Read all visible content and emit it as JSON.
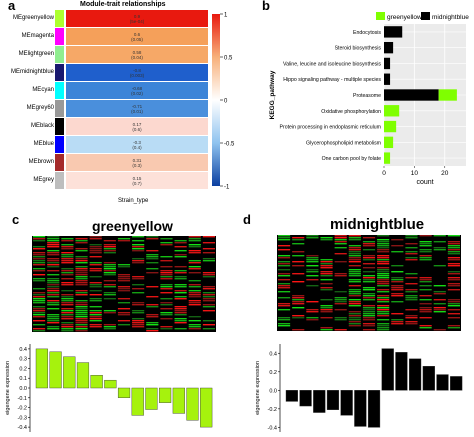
{
  "panel_a": {
    "letter": "a",
    "title": "Module-trait relationships",
    "xlabel": "Strain_type",
    "modules": [
      {
        "name": "MEgreenyellow",
        "swatch": "#adff2f",
        "color": "#e8190f",
        "r": "0.9",
        "p": "(5e-04)"
      },
      {
        "name": "MEmagenta",
        "swatch": "#ff00ff",
        "color": "#f5a05a",
        "r": "0.6",
        "p": "(0.05)"
      },
      {
        "name": "MElightgreen",
        "swatch": "#90ee90",
        "color": "#f6a867",
        "r": "0.58",
        "p": "(0.04)"
      },
      {
        "name": "MEmidnightblue",
        "swatch": "#191970",
        "color": "#1f5fcc",
        "r": "-0.8",
        "p": "(0.003)"
      },
      {
        "name": "MEcyan",
        "swatch": "#00ffff",
        "color": "#3c84d8",
        "r": "-0.68",
        "p": "(0.02)"
      },
      {
        "name": "MEgrey60",
        "swatch": "#999999",
        "color": "#4a8fdc",
        "r": "-0.71",
        "p": "(0.01)"
      },
      {
        "name": "MEblack",
        "swatch": "#000000",
        "color": "#fcd8cf",
        "r": "0.17",
        "p": "(0.6)"
      },
      {
        "name": "MEblue",
        "swatch": "#0000ff",
        "color": "#b9dcf5",
        "r": "-0.3",
        "p": "(0.4)"
      },
      {
        "name": "MEbrown",
        "swatch": "#a52a2a",
        "color": "#f9c9b0",
        "r": "0.31",
        "p": "(0.3)"
      },
      {
        "name": "MEgrey",
        "swatch": "#bebebe",
        "color": "#fde1d9",
        "r": "0.15",
        "p": "(0.7)"
      }
    ],
    "scale_ticks": [
      "1",
      "0.5",
      "0",
      "-0.5",
      "-1"
    ]
  },
  "panel_b": {
    "letter": "b",
    "legend": [
      "greenyellow",
      "midnightblue"
    ],
    "colors": {
      "greenyellow": "#7fff00",
      "midnightblue": "#000000"
    },
    "ylabel": "KEGG_pathway",
    "xlabel": "count",
    "chart_data": {
      "type": "bar",
      "orientation": "horizontal",
      "stacked": true,
      "categories": [
        "Endocytosis",
        "Steroid biosynthesis",
        "Valine, leucine and isoleucine biosynthesis",
        "Hippo signaling pathway - multiple species",
        "Proteasome",
        "Oxidative phosphorylation",
        "Protein processing in endoplasmic reticulum",
        "Glycerophospholipid metabolism",
        "One carbon pool by folate"
      ],
      "series": [
        {
          "name": "midnightblue",
          "values": [
            6,
            3,
            2,
            2,
            18,
            0,
            0,
            0,
            0
          ]
        },
        {
          "name": "greenyellow",
          "values": [
            0,
            0,
            0,
            0,
            6,
            5,
            4,
            3,
            2
          ]
        }
      ],
      "xticks": [
        "0",
        "10",
        "20"
      ],
      "xlim": [
        0,
        27
      ]
    }
  },
  "panel_c": {
    "letter": "c",
    "title": "greenyellow",
    "ylabel": "eigengene expression",
    "chart_data": {
      "type": "bar",
      "values": [
        0.4,
        0.37,
        0.32,
        0.26,
        0.13,
        0.08,
        -0.1,
        -0.28,
        -0.22,
        -0.15,
        -0.26,
        -0.33,
        -0.4
      ],
      "yticks": [
        "0.4",
        "0.3",
        "0.2",
        "0.1",
        "0.0",
        "-0.1",
        "-0.2",
        "-0.3",
        "-0.4"
      ],
      "ylim": [
        -0.45,
        0.45
      ]
    },
    "bar_color": "#a6f20d"
  },
  "panel_d": {
    "letter": "d",
    "title": "midnightblue",
    "ylabel": "eigengene expression",
    "chart_data": {
      "type": "bar",
      "values": [
        -0.12,
        -0.17,
        -0.24,
        -0.21,
        -0.27,
        -0.39,
        -0.4,
        0.45,
        0.41,
        0.34,
        0.26,
        0.17,
        0.15
      ],
      "yticks": [
        "0.4",
        "0.2",
        "0.0",
        "-0.2",
        "-0.4"
      ],
      "ylim": [
        -0.45,
        0.5
      ]
    },
    "bar_color": "#000000"
  }
}
